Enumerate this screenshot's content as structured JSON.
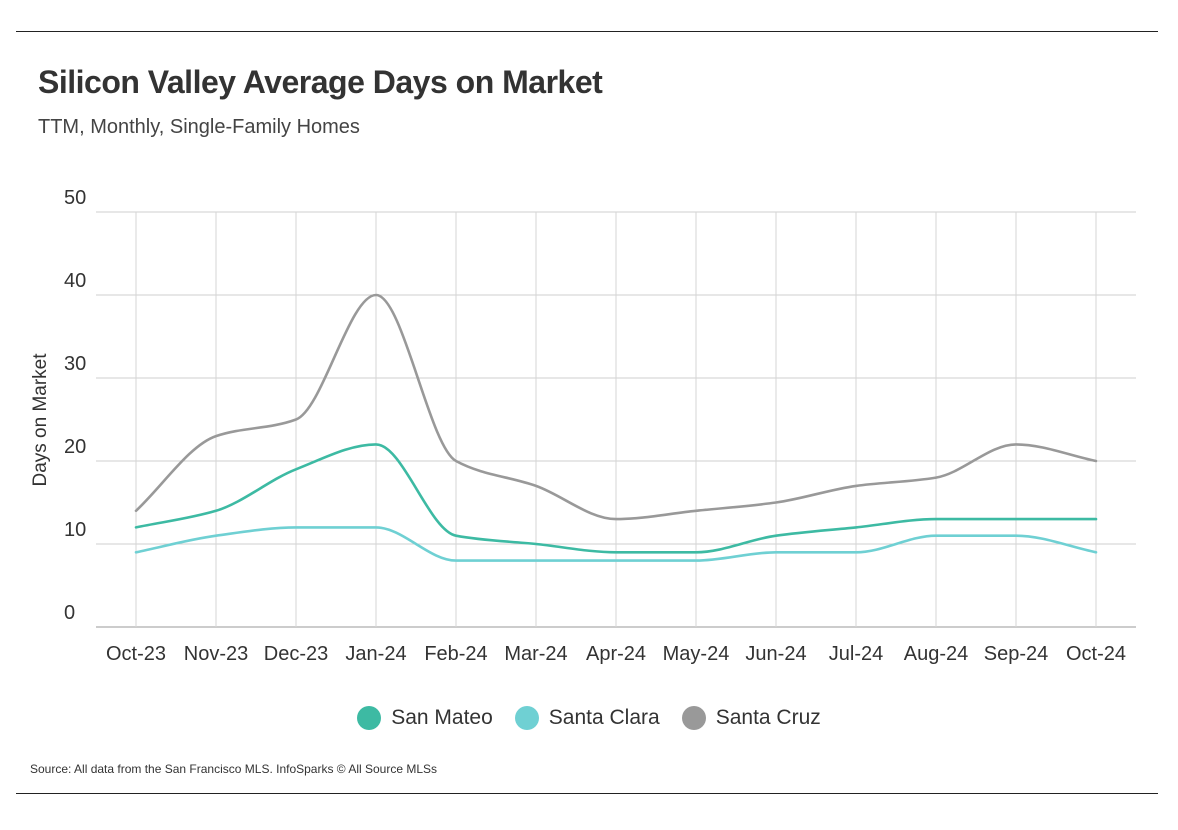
{
  "header": {
    "title": "Silicon Valley Average Days on Market",
    "subtitle": "TTM, Monthly, Single-Family Homes"
  },
  "footer": {
    "source": "Source:  All data from the San Francisco MLS. InfoSparks © All Source MLSs"
  },
  "chart_data": {
    "type": "line",
    "title": "Silicon Valley Average Days on Market",
    "subtitle": "TTM, Monthly, Single-Family Homes",
    "xlabel": "",
    "ylabel": "Days on Market",
    "ylim": [
      0,
      50
    ],
    "yticks": [
      0,
      10,
      20,
      30,
      40,
      50
    ],
    "grid": true,
    "legend_position": "bottom-center",
    "categories": [
      "Oct-23",
      "Nov-23",
      "Dec-23",
      "Jan-24",
      "Feb-24",
      "Mar-24",
      "Apr-24",
      "May-24",
      "Jun-24",
      "Jul-24",
      "Aug-24",
      "Sep-24",
      "Oct-24"
    ],
    "series": [
      {
        "name": "San Mateo",
        "color": "#3dbaa3",
        "values": [
          12,
          14,
          19,
          22,
          11,
          10,
          9,
          9,
          11,
          12,
          13,
          13,
          13
        ]
      },
      {
        "name": "Santa Clara",
        "color": "#6fd0d3",
        "values": [
          9,
          11,
          12,
          12,
          8,
          8,
          8,
          8,
          9,
          9,
          11,
          11,
          9
        ]
      },
      {
        "name": "Santa Cruz",
        "color": "#999999",
        "values": [
          14,
          23,
          25,
          40,
          20,
          17,
          13,
          14,
          15,
          17,
          18,
          22,
          20
        ]
      }
    ]
  }
}
